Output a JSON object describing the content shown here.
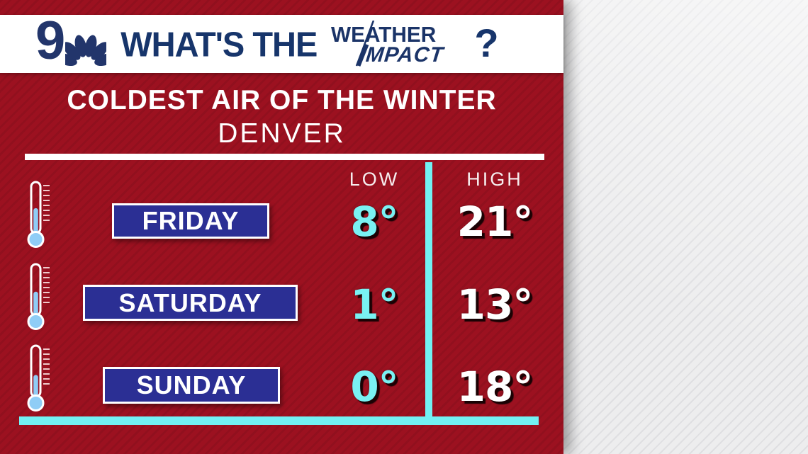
{
  "header": {
    "station_number": "9",
    "title": "WHAT'S THE",
    "brand_line1": "WEATHER",
    "brand_line2": "IMPACT",
    "question_mark": "?",
    "icons": [
      "nbc-peacock-icon",
      "slash-icon"
    ]
  },
  "panel": {
    "title": "COLDEST AIR OF THE WINTER",
    "subtitle": "DENVER",
    "columns": {
      "low": "LOW",
      "high": "HIGH"
    },
    "rows": [
      {
        "day": "FRIDAY",
        "low": "8°",
        "high": "21°",
        "icon": "thermometer-icon",
        "thermometer_fill": 0.47
      },
      {
        "day": "SATURDAY",
        "low": "1°",
        "high": "13°",
        "icon": "thermometer-icon",
        "thermometer_fill": 0.44
      },
      {
        "day": "SUNDAY",
        "low": "0°",
        "high": "18°",
        "icon": "thermometer-icon",
        "thermometer_fill": 0.4
      }
    ]
  },
  "chart_data": {
    "type": "table",
    "title": "COLDEST AIR OF THE WINTER",
    "subtitle": "DENVER",
    "categories": [
      "FRIDAY",
      "SATURDAY",
      "SUNDAY"
    ],
    "series": [
      {
        "name": "LOW",
        "values": [
          8,
          1,
          0
        ]
      },
      {
        "name": "HIGH",
        "values": [
          21,
          13,
          18
        ]
      }
    ],
    "units": "°F"
  },
  "colors": {
    "panel_red": "#9c1120",
    "navy": "#17356b",
    "day_box_blue": "#2b2f94",
    "accent_cyan": "#72f1f3",
    "mercury_blue": "#8fcdf6",
    "background_gray": "#ededee"
  }
}
